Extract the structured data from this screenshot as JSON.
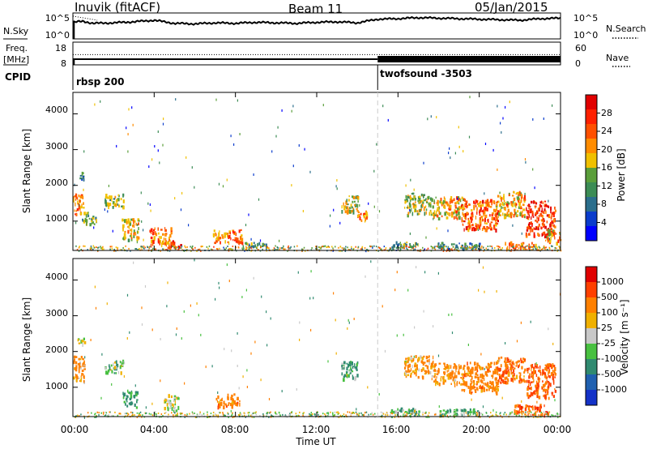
{
  "header": {
    "station": "Inuvik (fitACF)",
    "beam": "Beam 11",
    "date": "05/Jan/2015"
  },
  "top_panels": {
    "nsky_label": "N.Sky",
    "nsky_ticks": [
      "10^5",
      "10^0"
    ],
    "nsearch_label": "N.Search",
    "nsearch_ticks": [
      "10^5",
      "10^0"
    ],
    "freq_label_1": "Freq.",
    "freq_label_2": "[MHz]",
    "freq_ticks": [
      "18",
      "8"
    ],
    "nave_label": "Nave",
    "nave_ticks": [
      "60",
      "0"
    ],
    "cpid_label": "CPID",
    "cpid_segments": [
      {
        "name": "rbsp 200",
        "start_hour": 0
      },
      {
        "name": "twofsound -3503",
        "start_hour": 15
      }
    ]
  },
  "time_axis": {
    "ticks": [
      "00:00",
      "04:00",
      "08:00",
      "12:00",
      "16:00",
      "20:00",
      "00:00"
    ],
    "tick_hours": [
      0,
      4,
      8,
      12,
      16,
      20,
      24
    ],
    "label": "Time UT",
    "range_hours": [
      0,
      24
    ]
  },
  "power_panel": {
    "ylabel": "Slant Range [km]",
    "yticks": [
      "4000",
      "3000",
      "2000",
      "1000"
    ],
    "colorbar_label": "Power [dB]",
    "colorbar_ticks": [
      "28",
      "24",
      "20",
      "16",
      "12",
      "8",
      "4"
    ],
    "colors": [
      "#0000ff",
      "#0a3ccc",
      "#2b6e8c",
      "#3c8c55",
      "#5a9e3a",
      "#f0c000",
      "#ff8c00",
      "#ff5000",
      "#ff2000",
      "#e10000"
    ]
  },
  "velocity_panel": {
    "ylabel": "Slant Range [km]",
    "yticks": [
      "4000",
      "3000",
      "2000",
      "1000"
    ],
    "colorbar_label": "Velocity [m s⁻¹]",
    "colorbar_ticks": [
      "1000",
      "500",
      "100",
      "25",
      "-25",
      "-100",
      "-500",
      "-1000"
    ],
    "colors": [
      "#1432c8",
      "#2060b0",
      "#308a70",
      "#48c040",
      "#c8c8c8",
      "#f0b000",
      "#ff8000",
      "#ff4000",
      "#e00000"
    ]
  },
  "chart_data": [
    {
      "type": "line",
      "series": [
        {
          "name": "N.Sky"
        }
      ],
      "x_range_hours": [
        0,
        24
      ],
      "y_scale": "log",
      "ylim_exponent": [
        0,
        5
      ],
      "x_hours": [
        0,
        0.5,
        1,
        2,
        3,
        4,
        5,
        6,
        7,
        8,
        9,
        10,
        11,
        12,
        13,
        14,
        15,
        16,
        17,
        18,
        19,
        20,
        21,
        22,
        23,
        24
      ],
      "values": [
        3.2,
        3.4,
        3.0,
        3.1,
        3.3,
        3.6,
        3.0,
        2.9,
        3.1,
        3.0,
        3.2,
        3.1,
        3.0,
        3.2,
        3.3,
        3.1,
        3.8,
        3.9,
        4.1,
        4.0,
        3.9,
        3.8,
        3.7,
        3.6,
        3.9,
        4.0
      ]
    },
    {
      "type": "line",
      "series": [
        {
          "name": "Freq."
        },
        {
          "name": "Nave"
        }
      ],
      "x_range_hours": [
        0,
        24
      ],
      "ylim_freq_mhz": [
        8,
        18
      ],
      "ylim_nave": [
        0,
        60
      ],
      "freq_mhz": 10.5,
      "nave_value": 23
    },
    {
      "type": "heatmap",
      "title": "Power [dB]",
      "xlabel": "Time UT",
      "ylabel": "Slant Range [km]",
      "x_range_hours": [
        0,
        24
      ],
      "y_range_km": [
        180,
        4600
      ],
      "value_range_db": [
        0,
        32
      ],
      "blobs": [
        {
          "t": 0.2,
          "r": 1500,
          "dt": 0.5,
          "dr": 500,
          "v": 22
        },
        {
          "t": 0.4,
          "r": 2300,
          "dt": 0.3,
          "dr": 200,
          "v": 10
        },
        {
          "t": 0.8,
          "r": 1100,
          "dt": 0.6,
          "dr": 300,
          "v": 14
        },
        {
          "t": 2.0,
          "r": 1600,
          "dt": 0.8,
          "dr": 300,
          "v": 15
        },
        {
          "t": 2.8,
          "r": 800,
          "dt": 0.7,
          "dr": 500,
          "v": 18
        },
        {
          "t": 4.3,
          "r": 600,
          "dt": 0.9,
          "dr": 400,
          "v": 22
        },
        {
          "t": 5.0,
          "r": 400,
          "dt": 0.6,
          "dr": 200,
          "v": 26
        },
        {
          "t": 7.6,
          "r": 600,
          "dt": 1.2,
          "dr": 300,
          "v": 22
        },
        {
          "t": 9.0,
          "r": 350,
          "dt": 1.0,
          "dr": 120,
          "v": 12
        },
        {
          "t": 13.6,
          "r": 1500,
          "dt": 0.7,
          "dr": 400,
          "v": 16
        },
        {
          "t": 14.2,
          "r": 1200,
          "dt": 0.4,
          "dr": 250,
          "v": 22
        },
        {
          "t": 17.0,
          "r": 1500,
          "dt": 1.2,
          "dr": 500,
          "v": 16
        },
        {
          "t": 18.5,
          "r": 1400,
          "dt": 1.3,
          "dr": 500,
          "v": 20
        },
        {
          "t": 20.0,
          "r": 1200,
          "dt": 1.5,
          "dr": 700,
          "v": 24
        },
        {
          "t": 21.5,
          "r": 1500,
          "dt": 1.2,
          "dr": 600,
          "v": 20
        },
        {
          "t": 23.0,
          "r": 1100,
          "dt": 1.2,
          "dr": 800,
          "v": 26
        },
        {
          "t": 23.6,
          "r": 600,
          "dt": 0.6,
          "dr": 300,
          "v": 20
        },
        {
          "t": 16.3,
          "r": 350,
          "dt": 1.2,
          "dr": 150,
          "v": 12
        },
        {
          "t": 19.0,
          "r": 330,
          "dt": 1.8,
          "dr": 150,
          "v": 10
        },
        {
          "t": 22.0,
          "r": 350,
          "dt": 1.3,
          "dr": 150,
          "v": 22
        }
      ]
    },
    {
      "type": "heatmap",
      "title": "Velocity",
      "xlabel": "Time UT",
      "ylabel": "Slant Range [km]",
      "x_range_hours": [
        0,
        24
      ],
      "y_range_km": [
        180,
        4600
      ],
      "value_range_ms": [
        -1000,
        1000
      ],
      "blobs": [
        {
          "t": 0.2,
          "r": 1550,
          "dt": 0.6,
          "dr": 600,
          "v": -200
        },
        {
          "t": 0.4,
          "r": 2300,
          "dt": 0.3,
          "dr": 200,
          "v": 0
        },
        {
          "t": 2.0,
          "r": 1600,
          "dt": 0.8,
          "dr": 300,
          "v": 50
        },
        {
          "t": 2.8,
          "r": 700,
          "dt": 0.6,
          "dr": 400,
          "v": 200
        },
        {
          "t": 4.8,
          "r": 600,
          "dt": 0.6,
          "dr": 400,
          "v": 0
        },
        {
          "t": 7.6,
          "r": 650,
          "dt": 1.0,
          "dr": 300,
          "v": -300
        },
        {
          "t": 13.6,
          "r": 1500,
          "dt": 0.7,
          "dr": 400,
          "v": 150
        },
        {
          "t": 17.0,
          "r": 1600,
          "dt": 1.2,
          "dr": 500,
          "v": -150
        },
        {
          "t": 18.5,
          "r": 1400,
          "dt": 1.3,
          "dr": 500,
          "v": -200
        },
        {
          "t": 20.0,
          "r": 1300,
          "dt": 1.5,
          "dr": 700,
          "v": -300
        },
        {
          "t": 21.5,
          "r": 1500,
          "dt": 1.2,
          "dr": 600,
          "v": -400
        },
        {
          "t": 23.0,
          "r": 1200,
          "dt": 1.2,
          "dr": 800,
          "v": -500
        },
        {
          "t": 16.3,
          "r": 350,
          "dt": 1.2,
          "dr": 150,
          "v": 120
        },
        {
          "t": 19.0,
          "r": 330,
          "dt": 1.8,
          "dr": 150,
          "v": 80
        },
        {
          "t": 22.5,
          "r": 400,
          "dt": 1.4,
          "dr": 250,
          "v": -600
        }
      ]
    }
  ]
}
